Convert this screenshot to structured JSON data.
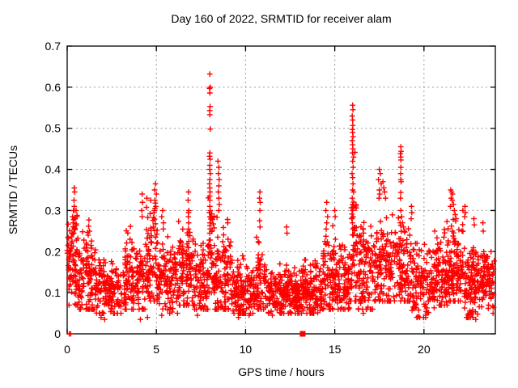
{
  "chart_data": {
    "type": "scatter",
    "title": "Day 160 of 2022, SRMTID for receiver alam",
    "xlabel": "GPS time / hours",
    "ylabel": "SRMTID / TECUs",
    "xlim": [
      0,
      24
    ],
    "ylim": [
      0,
      0.7
    ],
    "xticks": [
      0,
      5,
      10,
      15,
      20
    ],
    "yticks": [
      0,
      0.1,
      0.2,
      0.3,
      0.4,
      0.5,
      0.6,
      0.7
    ],
    "grid": true,
    "legend": "none",
    "marker": {
      "shape": "plus",
      "color": "#ff0000",
      "size": 7
    },
    "grid_color": "#999999",
    "border_color": "#000000",
    "seed": 7,
    "series_name": "SRMTID",
    "square_points": [
      [
        13.2,
        0
      ]
    ],
    "spike_points": [
      [
        0.12,
        0.0
      ],
      [
        0.2,
        0.0
      ],
      [
        0.4,
        0.355
      ],
      [
        0.42,
        0.345
      ],
      [
        0.38,
        0.325
      ],
      [
        0.4,
        0.31
      ],
      [
        0.35,
        0.3
      ],
      [
        0.3,
        0.285
      ],
      [
        0.45,
        0.28
      ],
      [
        0.33,
        0.27
      ],
      [
        0.5,
        0.3
      ],
      [
        0.55,
        0.285
      ],
      [
        1.22,
        0.277
      ],
      [
        1.2,
        0.262
      ],
      [
        1.25,
        0.25
      ],
      [
        1.18,
        0.24
      ],
      [
        4.2,
        0.34
      ],
      [
        4.22,
        0.32
      ],
      [
        4.18,
        0.3
      ],
      [
        4.2,
        0.285
      ],
      [
        4.95,
        0.365
      ],
      [
        4.9,
        0.35
      ],
      [
        5.0,
        0.34
      ],
      [
        4.92,
        0.325
      ],
      [
        4.97,
        0.31
      ],
      [
        4.88,
        0.3
      ],
      [
        5.35,
        0.3
      ],
      [
        5.3,
        0.285
      ],
      [
        5.4,
        0.27
      ],
      [
        6.8,
        0.345
      ],
      [
        6.78,
        0.325
      ],
      [
        6.82,
        0.3
      ],
      [
        6.8,
        0.295
      ],
      [
        6.79,
        0.285
      ],
      [
        6.81,
        0.27
      ],
      [
        6.8,
        0.255
      ],
      [
        6.78,
        0.24
      ],
      [
        6.82,
        0.225
      ],
      [
        6.8,
        0.21
      ],
      [
        8.0,
        0.632
      ],
      [
        8.02,
        0.6
      ],
      [
        7.98,
        0.597
      ],
      [
        8.0,
        0.586
      ],
      [
        8.01,
        0.553
      ],
      [
        7.99,
        0.543
      ],
      [
        8.0,
        0.533
      ],
      [
        8.02,
        0.498
      ],
      [
        8.0,
        0.44
      ],
      [
        7.98,
        0.432
      ],
      [
        8.01,
        0.425
      ],
      [
        8.0,
        0.41
      ],
      [
        7.99,
        0.4
      ],
      [
        8.02,
        0.39
      ],
      [
        8.0,
        0.375
      ],
      [
        7.98,
        0.365
      ],
      [
        8.0,
        0.355
      ],
      [
        8.01,
        0.345
      ],
      [
        7.99,
        0.335
      ],
      [
        8.0,
        0.325
      ],
      [
        8.0,
        0.31
      ],
      [
        8.02,
        0.3
      ],
      [
        7.97,
        0.295
      ],
      [
        8.0,
        0.285
      ],
      [
        8.0,
        0.27
      ],
      [
        8.01,
        0.255
      ],
      [
        7.99,
        0.245
      ],
      [
        8.45,
        0.42
      ],
      [
        8.5,
        0.405
      ],
      [
        8.48,
        0.39
      ],
      [
        8.52,
        0.375
      ],
      [
        8.5,
        0.36
      ],
      [
        8.47,
        0.345
      ],
      [
        8.5,
        0.33
      ],
      [
        8.53,
        0.315
      ],
      [
        8.5,
        0.3
      ],
      [
        9.0,
        0.27
      ],
      [
        10.8,
        0.345
      ],
      [
        10.78,
        0.33
      ],
      [
        10.82,
        0.32
      ],
      [
        10.8,
        0.3
      ],
      [
        10.79,
        0.275
      ],
      [
        10.81,
        0.26
      ],
      [
        12.3,
        0.26
      ],
      [
        12.32,
        0.245
      ],
      [
        14.55,
        0.32
      ],
      [
        14.5,
        0.3
      ],
      [
        14.6,
        0.285
      ],
      [
        14.55,
        0.27
      ],
      [
        14.52,
        0.255
      ],
      [
        15.0,
        0.3
      ],
      [
        15.02,
        0.285
      ],
      [
        16.0,
        0.556
      ],
      [
        16.02,
        0.545
      ],
      [
        15.98,
        0.53
      ],
      [
        16.0,
        0.52
      ],
      [
        16.01,
        0.507
      ],
      [
        15.99,
        0.497
      ],
      [
        16.0,
        0.49
      ],
      [
        16.02,
        0.48
      ],
      [
        15.98,
        0.47
      ],
      [
        16.0,
        0.46
      ],
      [
        16.01,
        0.45
      ],
      [
        15.99,
        0.44
      ],
      [
        16.05,
        0.43
      ],
      [
        16.0,
        0.42
      ],
      [
        16.03,
        0.405
      ],
      [
        15.97,
        0.39
      ],
      [
        16.0,
        0.38
      ],
      [
        16.02,
        0.365
      ],
      [
        16.0,
        0.35
      ],
      [
        16.05,
        0.345
      ],
      [
        15.98,
        0.33
      ],
      [
        16.0,
        0.315
      ],
      [
        16.0,
        0.3
      ],
      [
        16.03,
        0.285
      ],
      [
        15.99,
        0.27
      ],
      [
        16.0,
        0.255
      ],
      [
        16.01,
        0.24
      ],
      [
        17.5,
        0.4
      ],
      [
        17.55,
        0.39
      ],
      [
        17.45,
        0.375
      ],
      [
        17.6,
        0.365
      ],
      [
        17.5,
        0.35
      ],
      [
        17.52,
        0.34
      ],
      [
        17.48,
        0.33
      ],
      [
        17.7,
        0.37
      ],
      [
        17.75,
        0.355
      ],
      [
        17.8,
        0.345
      ],
      [
        17.85,
        0.33
      ],
      [
        18.7,
        0.455
      ],
      [
        18.72,
        0.444
      ],
      [
        18.68,
        0.438
      ],
      [
        18.7,
        0.43
      ],
      [
        18.71,
        0.423
      ],
      [
        18.7,
        0.405
      ],
      [
        18.69,
        0.39
      ],
      [
        18.7,
        0.375
      ],
      [
        18.72,
        0.37
      ],
      [
        18.7,
        0.344
      ],
      [
        18.68,
        0.33
      ],
      [
        18.7,
        0.3
      ],
      [
        18.75,
        0.285
      ],
      [
        18.8,
        0.27
      ],
      [
        18.85,
        0.26
      ],
      [
        18.9,
        0.25
      ],
      [
        19.3,
        0.31
      ],
      [
        19.32,
        0.295
      ],
      [
        19.28,
        0.28
      ],
      [
        20.6,
        0.25
      ],
      [
        21.5,
        0.35
      ],
      [
        21.55,
        0.345
      ],
      [
        21.6,
        0.34
      ],
      [
        21.52,
        0.33
      ],
      [
        21.58,
        0.325
      ],
      [
        21.65,
        0.315
      ],
      [
        21.48,
        0.31
      ],
      [
        21.7,
        0.3
      ],
      [
        21.75,
        0.29
      ],
      [
        21.8,
        0.28
      ],
      [
        22.3,
        0.31
      ],
      [
        22.32,
        0.295
      ],
      [
        22.28,
        0.285
      ],
      [
        22.8,
        0.28
      ],
      [
        22.82,
        0.265
      ],
      [
        23.3,
        0.27
      ],
      [
        23.32,
        0.25
      ],
      [
        1.9,
        0.04
      ],
      [
        2.1,
        0.035
      ],
      [
        2.6,
        0.05
      ],
      [
        4.1,
        0.035
      ],
      [
        4.5,
        0.04
      ],
      [
        5.3,
        0.045
      ],
      [
        7.3,
        0.045
      ],
      [
        9.6,
        0.04
      ],
      [
        10.2,
        0.045
      ],
      [
        11.5,
        0.045
      ],
      [
        12.4,
        0.05
      ],
      [
        16.6,
        0.05
      ],
      [
        19.6,
        0.04
      ],
      [
        20.1,
        0.045
      ],
      [
        22.5,
        0.04
      ],
      [
        22.9,
        0.035
      ]
    ],
    "baseline_clusters": [
      [
        0.0,
        0.6,
        85,
        0.17,
        0.055,
        0.07,
        0.3
      ],
      [
        0.6,
        1.6,
        110,
        0.13,
        0.05,
        0.06,
        0.25
      ],
      [
        1.6,
        3.2,
        150,
        0.105,
        0.035,
        0.05,
        0.18
      ],
      [
        3.2,
        4.4,
        130,
        0.14,
        0.05,
        0.06,
        0.28
      ],
      [
        4.4,
        5.1,
        90,
        0.175,
        0.065,
        0.08,
        0.33
      ],
      [
        5.1,
        6.2,
        110,
        0.14,
        0.05,
        0.05,
        0.27
      ],
      [
        6.2,
        7.1,
        100,
        0.155,
        0.055,
        0.07,
        0.3
      ],
      [
        7.1,
        7.9,
        85,
        0.125,
        0.045,
        0.06,
        0.24
      ],
      [
        7.9,
        8.25,
        45,
        0.2,
        0.08,
        0.1,
        0.42
      ],
      [
        8.25,
        9.2,
        105,
        0.14,
        0.055,
        0.06,
        0.3
      ],
      [
        9.2,
        10.5,
        145,
        0.105,
        0.035,
        0.05,
        0.19
      ],
      [
        10.5,
        11.1,
        60,
        0.13,
        0.05,
        0.06,
        0.29
      ],
      [
        11.1,
        13.0,
        210,
        0.1,
        0.03,
        0.05,
        0.17
      ],
      [
        13.0,
        14.3,
        150,
        0.105,
        0.035,
        0.05,
        0.18
      ],
      [
        14.3,
        15.1,
        90,
        0.14,
        0.055,
        0.06,
        0.29
      ],
      [
        15.1,
        15.85,
        85,
        0.12,
        0.045,
        0.06,
        0.24
      ],
      [
        15.85,
        16.25,
        50,
        0.21,
        0.09,
        0.08,
        0.46
      ],
      [
        16.25,
        17.2,
        105,
        0.15,
        0.06,
        0.06,
        0.33
      ],
      [
        17.2,
        18.3,
        115,
        0.165,
        0.06,
        0.08,
        0.37
      ],
      [
        18.3,
        19.3,
        105,
        0.165,
        0.06,
        0.08,
        0.39
      ],
      [
        19.3,
        20.6,
        130,
        0.12,
        0.045,
        0.04,
        0.22
      ],
      [
        20.6,
        21.4,
        100,
        0.145,
        0.05,
        0.07,
        0.28
      ],
      [
        21.4,
        22.2,
        100,
        0.165,
        0.06,
        0.08,
        0.34
      ],
      [
        22.2,
        23.1,
        110,
        0.12,
        0.05,
        0.04,
        0.28
      ],
      [
        23.1,
        23.95,
        90,
        0.13,
        0.04,
        0.05,
        0.2
      ]
    ]
  }
}
